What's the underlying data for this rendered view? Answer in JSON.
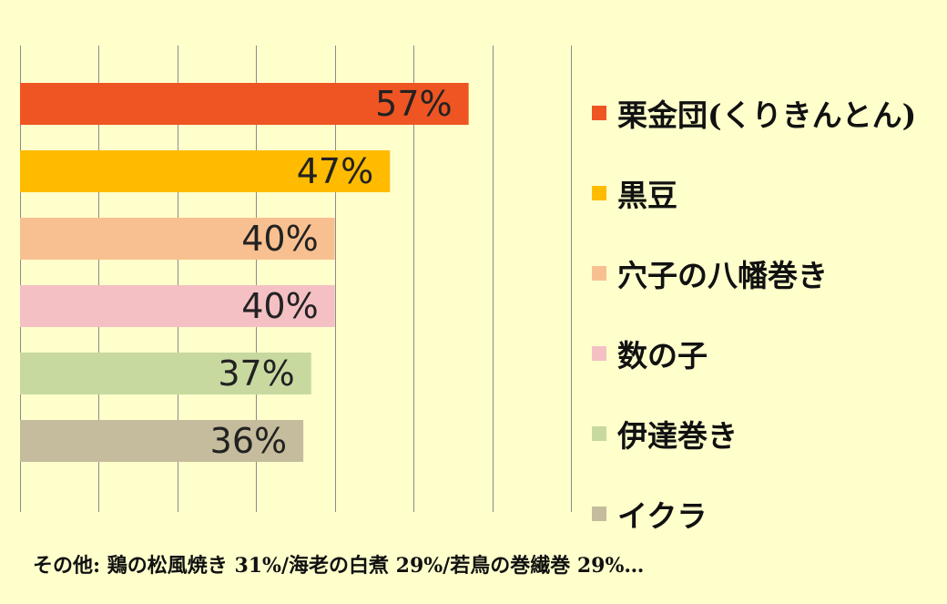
{
  "chart_data": {
    "type": "bar",
    "orientation": "horizontal",
    "categories": [
      "栗金団(くりきんとん)",
      "黒豆",
      "穴子の八幡巻き",
      "数の子",
      "伊達巻き",
      "イクラ"
    ],
    "values": [
      57,
      47,
      40,
      40,
      37,
      36
    ],
    "data_labels": [
      "57%",
      "47%",
      "40%",
      "40%",
      "37%",
      "36%"
    ],
    "colors": [
      "#ee5522",
      "#ffbb00",
      "#f8c090",
      "#f4c0c4",
      "#c8d9a0",
      "#c4bc9c"
    ],
    "xlim": [
      0,
      70
    ],
    "grid": true,
    "legend": "right"
  },
  "legend": [
    {
      "label": "栗金団(くりきんとん)",
      "color": "#ee5522"
    },
    {
      "label": "黒豆",
      "color": "#ffbb00"
    },
    {
      "label": "穴子の八幡巻き",
      "color": "#f8c090"
    },
    {
      "label": "数の子",
      "color": "#f4c0c4"
    },
    {
      "label": "伊達巻き",
      "color": "#c8d9a0"
    },
    {
      "label": "イクラ",
      "color": "#c4bc9c"
    }
  ],
  "footnote": "その他:  鶏の松風焼き 31%/海老の白煮 29%/若鳥の巻繊巻 29%…"
}
